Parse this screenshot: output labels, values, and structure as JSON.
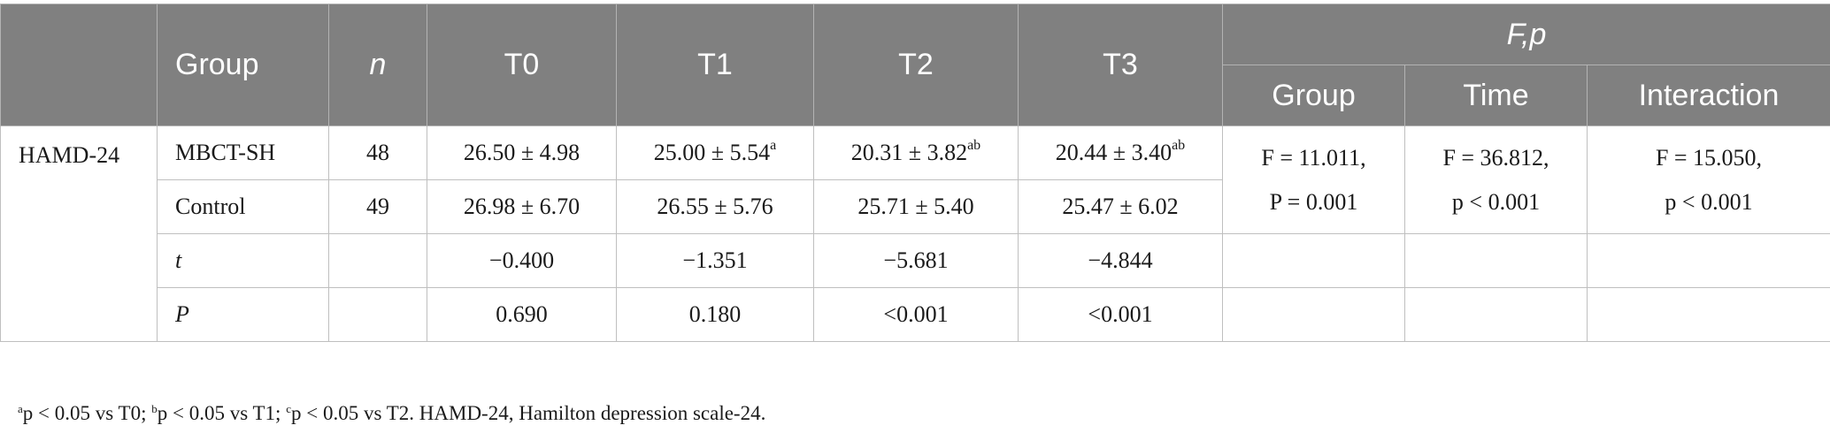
{
  "header": {
    "blank": "",
    "group": "Group",
    "n": "n",
    "t0": "T0",
    "t1": "T1",
    "t2": "T2",
    "t3": "T3",
    "fp": "F,p",
    "fp_group": "Group",
    "fp_time": "Time",
    "fp_interaction": "Interaction"
  },
  "rows": {
    "scale": "HAMD-24",
    "mbct": {
      "group": "MBCT-SH",
      "n": "48",
      "t0": "26.50 ± 4.98",
      "t1": "25.00 ± 5.54",
      "t1_sup": "a",
      "t2": "20.31 ± 3.82",
      "t2_sup": "ab",
      "t3": "20.44 ± 3.40",
      "t3_sup": "ab"
    },
    "control": {
      "group": "Control",
      "n": "49",
      "t0": "26.98 ± 6.70",
      "t1": "26.55 ± 5.76",
      "t2": "25.71 ± 5.40",
      "t3": "25.47 ± 6.02"
    },
    "t_row": {
      "label": "t",
      "t0": "−0.400",
      "t1": "−1.351",
      "t2": "−5.681",
      "t3": "−4.844"
    },
    "p_row": {
      "label": "P",
      "t0": "0.690",
      "t1": "0.180",
      "t2": "<0.001",
      "t3": "<0.001"
    },
    "stats": {
      "group_f": "F = 11.011,",
      "group_p": "P = 0.001",
      "time_f": "F = 36.812,",
      "time_p": "p < 0.001",
      "interaction_f": "F = 15.050,",
      "interaction_p": "p < 0.001"
    }
  },
  "footnote": {
    "a_sup": "a",
    "a_text": "p < 0.05 vs T0; ",
    "b_sup": "b",
    "b_text": "p < 0.05 vs T1; ",
    "c_sup": "c",
    "c_text": "p < 0.05 vs T2. HAMD-24, Hamilton depression scale-24."
  }
}
